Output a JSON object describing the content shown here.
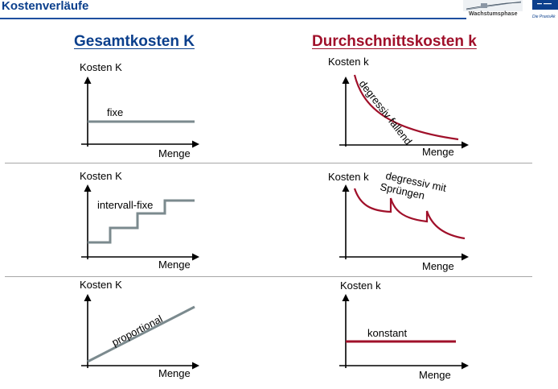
{
  "slide": {
    "title": "Kostenverläufe",
    "logo_caption": "Wachstumsphase",
    "logo_brand": "Die PraxisAk"
  },
  "columns": {
    "left_heading": "Gesamtkosten K",
    "right_heading": "Durchschnittskosten k"
  },
  "diagrams": {
    "fixed_total": {
      "y_label": "Kosten K",
      "x_label": "Menge",
      "curve_label": "fixe"
    },
    "degressive_average": {
      "y_label": "Kosten k",
      "x_label": "Menge",
      "curve_label": "degressiv fallend"
    },
    "interval_total": {
      "y_label": "Kosten K",
      "x_label": "Menge",
      "curve_label": "intervall-fixe"
    },
    "jumps_average": {
      "y_label": "Kosten k",
      "x_label": "Menge",
      "curve_label_line1": "degressiv mit",
      "curve_label_line2": "Sprüngen"
    },
    "proportional_total": {
      "y_label": "Kosten K",
      "x_label": "Menge",
      "curve_label": "proportional"
    },
    "constant_average": {
      "y_label": "Kosten k",
      "x_label": "Menge",
      "curve_label": "konstant"
    }
  },
  "colors": {
    "title_blue": "#0b3f8c",
    "heading_red": "#a0102a",
    "curve_gray": "#7b8a8e",
    "curve_red": "#a0102a"
  }
}
